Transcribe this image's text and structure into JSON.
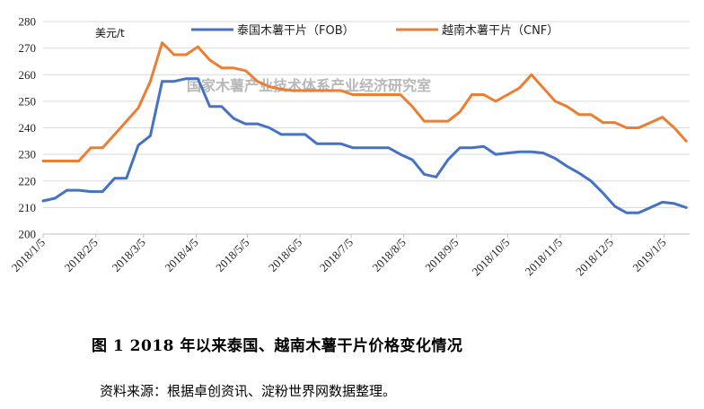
{
  "figure": {
    "caption": "图 1    2018 年以来泰国、越南木薯干片价格变化情况",
    "source": "资料来源：根据卓创资讯、淀粉世界网数据整理。",
    "watermark": "国家木薯产业技术体系产业经济研究室"
  },
  "chart_data": {
    "type": "line",
    "title": "",
    "xlabel": "",
    "ylabel": "美元/t",
    "ylim": [
      200,
      280
    ],
    "yticks": [
      200,
      210,
      220,
      230,
      240,
      250,
      260,
      270,
      280
    ],
    "x_tick_labels": [
      "2018/1/5",
      "2018/2/5",
      "2018/3/5",
      "2018/4/5",
      "2018/5/5",
      "2018/6/5",
      "2018/7/5",
      "2018/8/5",
      "2018/9/5",
      "2018/10/5",
      "2018/11/5",
      "2018/12/5",
      "2019/1/5"
    ],
    "x_range": [
      "2018/1/5",
      "2019/1/20"
    ],
    "grid": true,
    "legend": "top",
    "series": [
      {
        "name": "泰国木薯干片（FOB）",
        "color": "#4472C4",
        "points": [
          [
            "2018/1/5",
            212.5
          ],
          [
            "2018/1/12",
            213.5
          ],
          [
            "2018/1/19",
            216.5
          ],
          [
            "2018/1/26",
            216.5
          ],
          [
            "2018/2/2",
            216.0
          ],
          [
            "2018/2/9",
            216.0
          ],
          [
            "2018/2/16",
            221.0
          ],
          [
            "2018/2/23",
            221.0
          ],
          [
            "2018/3/2",
            233.5
          ],
          [
            "2018/3/9",
            237.0
          ],
          [
            "2018/3/16",
            257.5
          ],
          [
            "2018/3/23",
            257.5
          ],
          [
            "2018/3/30",
            258.5
          ],
          [
            "2018/4/6",
            258.5
          ],
          [
            "2018/4/13",
            248.0
          ],
          [
            "2018/4/20",
            248.0
          ],
          [
            "2018/4/27",
            243.5
          ],
          [
            "2018/5/4",
            241.5
          ],
          [
            "2018/5/11",
            241.5
          ],
          [
            "2018/5/18",
            240.0
          ],
          [
            "2018/5/25",
            237.5
          ],
          [
            "2018/6/1",
            237.5
          ],
          [
            "2018/6/8",
            237.5
          ],
          [
            "2018/6/15",
            234.0
          ],
          [
            "2018/6/22",
            234.0
          ],
          [
            "2018/6/29",
            234.0
          ],
          [
            "2018/7/6",
            232.5
          ],
          [
            "2018/7/13",
            232.5
          ],
          [
            "2018/7/20",
            232.5
          ],
          [
            "2018/7/27",
            232.5
          ],
          [
            "2018/8/3",
            230.0
          ],
          [
            "2018/8/10",
            228.0
          ],
          [
            "2018/8/17",
            222.5
          ],
          [
            "2018/8/24",
            221.5
          ],
          [
            "2018/8/31",
            228.0
          ],
          [
            "2018/9/7",
            232.5
          ],
          [
            "2018/9/14",
            232.5
          ],
          [
            "2018/9/21",
            233.0
          ],
          [
            "2018/9/28",
            230.0
          ],
          [
            "2018/10/5",
            230.5
          ],
          [
            "2018/10/12",
            231.0
          ],
          [
            "2018/10/19",
            231.0
          ],
          [
            "2018/10/26",
            230.5
          ],
          [
            "2018/11/2",
            228.5
          ],
          [
            "2018/11/9",
            225.5
          ],
          [
            "2018/11/16",
            223.0
          ],
          [
            "2018/11/23",
            220.0
          ],
          [
            "2018/11/30",
            215.5
          ],
          [
            "2018/12/7",
            210.5
          ],
          [
            "2018/12/14",
            208.0
          ],
          [
            "2018/12/21",
            208.0
          ],
          [
            "2018/12/28",
            210.0
          ],
          [
            "2019/1/4",
            212.0
          ],
          [
            "2019/1/11",
            211.5
          ],
          [
            "2019/1/18",
            210.0
          ]
        ]
      },
      {
        "name": "越南木薯干片（CNF）",
        "color": "#ED7D31",
        "points": [
          [
            "2018/1/5",
            227.5
          ],
          [
            "2018/1/12",
            227.5
          ],
          [
            "2018/1/19",
            227.5
          ],
          [
            "2018/1/26",
            227.5
          ],
          [
            "2018/2/2",
            232.5
          ],
          [
            "2018/2/9",
            232.5
          ],
          [
            "2018/2/16",
            237.5
          ],
          [
            "2018/2/23",
            242.5
          ],
          [
            "2018/3/2",
            247.5
          ],
          [
            "2018/3/9",
            257.5
          ],
          [
            "2018/3/16",
            272.0
          ],
          [
            "2018/3/23",
            267.5
          ],
          [
            "2018/3/30",
            267.5
          ],
          [
            "2018/4/6",
            270.5
          ],
          [
            "2018/4/13",
            265.5
          ],
          [
            "2018/4/20",
            262.5
          ],
          [
            "2018/4/27",
            262.5
          ],
          [
            "2018/5/4",
            261.5
          ],
          [
            "2018/5/11",
            257.5
          ],
          [
            "2018/5/18",
            255.5
          ],
          [
            "2018/5/25",
            254.5
          ],
          [
            "2018/6/1",
            254.0
          ],
          [
            "2018/6/8",
            254.0
          ],
          [
            "2018/6/15",
            254.0
          ],
          [
            "2018/6/22",
            254.0
          ],
          [
            "2018/6/29",
            254.0
          ],
          [
            "2018/7/6",
            252.5
          ],
          [
            "2018/7/13",
            252.5
          ],
          [
            "2018/7/20",
            252.5
          ],
          [
            "2018/7/27",
            252.5
          ],
          [
            "2018/8/3",
            252.5
          ],
          [
            "2018/8/10",
            248.0
          ],
          [
            "2018/8/17",
            242.5
          ],
          [
            "2018/8/24",
            242.5
          ],
          [
            "2018/8/31",
            242.5
          ],
          [
            "2018/9/7",
            246.0
          ],
          [
            "2018/9/14",
            252.5
          ],
          [
            "2018/9/21",
            252.5
          ],
          [
            "2018/9/28",
            250.0
          ],
          [
            "2018/10/5",
            252.5
          ],
          [
            "2018/10/12",
            255.0
          ],
          [
            "2018/10/19",
            260.0
          ],
          [
            "2018/10/26",
            255.0
          ],
          [
            "2018/11/2",
            250.0
          ],
          [
            "2018/11/9",
            248.0
          ],
          [
            "2018/11/16",
            245.0
          ],
          [
            "2018/11/23",
            245.0
          ],
          [
            "2018/11/30",
            242.0
          ],
          [
            "2018/12/7",
            242.0
          ],
          [
            "2018/12/14",
            240.0
          ],
          [
            "2018/12/21",
            240.0
          ],
          [
            "2018/12/28",
            242.0
          ],
          [
            "2019/1/4",
            244.0
          ],
          [
            "2019/1/11",
            240.0
          ],
          [
            "2019/1/18",
            235.0
          ]
        ]
      }
    ]
  }
}
